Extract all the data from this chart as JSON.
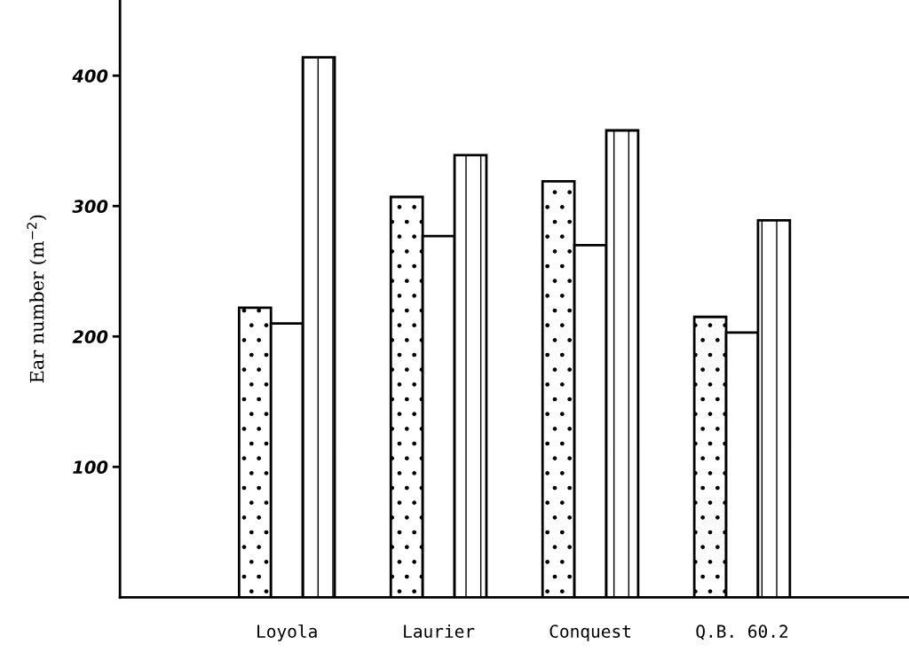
{
  "chart_data": {
    "type": "bar",
    "ylabel": "Ear number (m$^{−2}$)",
    "categories": [
      "Loyola",
      "Laurier",
      "Conquest",
      "Q.B. 60.2"
    ],
    "series": [
      {
        "color": "#ffffff",
        "values": [
          222,
          307,
          319,
          215
        ]
      },
      {
        "color": "#ffffff",
        "values": [
          210,
          277,
          270,
          203
        ]
      },
      {
        "color": "#ffffff",
        "values": [
          414,
          339,
          358,
          289
        ]
      }
    ],
    "ylim": [
      0,
      458
    ],
    "yticks": [
      100,
      200,
      300,
      400
    ],
    "grid": false
  }
}
